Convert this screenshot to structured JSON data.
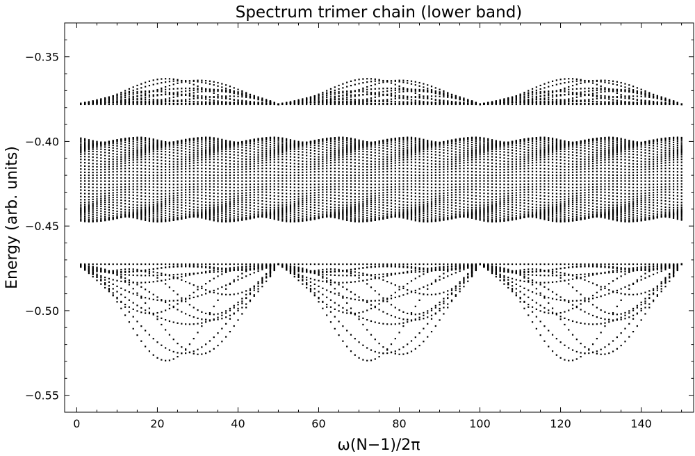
{
  "chart_data": {
    "type": "scatter",
    "title": "Spectrum trimer chain (lower band)",
    "xlabel": "ω(N−1)/2π",
    "ylabel": "Energy (arb. units)",
    "xlim": [
      -3,
      153
    ],
    "ylim": [
      -0.56,
      -0.33
    ],
    "x_ticks": [
      0,
      20,
      40,
      60,
      80,
      100,
      120,
      140
    ],
    "y_ticks": [
      -0.55,
      -0.5,
      -0.45,
      -0.4,
      -0.35
    ],
    "y_tick_labels": [
      "−0.55",
      "−0.50",
      "−0.45",
      "−0.40",
      "−0.35"
    ],
    "grid": false,
    "legend": false,
    "marker_color": "#000000",
    "series": [
      {
        "x_values": "integers 1 to 150",
        "period": 50,
        "dense_band_y": [
          -0.4475,
          -0.3975
        ],
        "outer_envelope_y": [
          -0.533,
          -0.362
        ],
        "edge_values_y": [
          -0.4725,
          -0.378
        ]
      }
    ]
  }
}
